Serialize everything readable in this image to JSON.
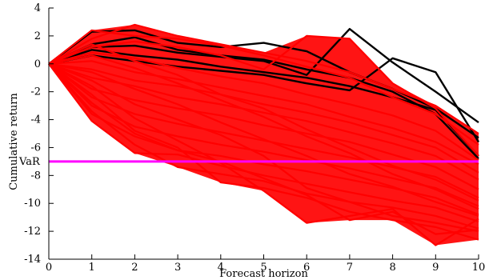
{
  "chart_data": {
    "type": "line",
    "title": "",
    "xlabel": "Forecast horizon",
    "ylabel": "Cumulative return",
    "xlim": [
      0,
      10
    ],
    "ylim": [
      -14,
      4
    ],
    "xticks": [
      0,
      1,
      2,
      3,
      4,
      5,
      6,
      7,
      8,
      9,
      10
    ],
    "yticks": [
      4,
      2,
      0,
      -2,
      -4,
      -6,
      -8,
      -10,
      -12,
      -14
    ],
    "grid": false,
    "colors": {
      "breach": "#000000",
      "simulated": "#ff0000",
      "var": "#ff00ff"
    },
    "var_line": {
      "label": "VaR",
      "value": -7.0
    },
    "series_black": [
      {
        "values": [
          0,
          2.3,
          2.4,
          1.5,
          1.2,
          1.5,
          0.9,
          -0.6,
          -1.8,
          -3.2,
          -5.3
        ]
      },
      {
        "values": [
          0,
          1.2,
          1.3,
          0.8,
          0.5,
          0.2,
          -0.8,
          2.5,
          0.1,
          -2.0,
          -4.2
        ]
      },
      {
        "values": [
          0,
          0.6,
          0.2,
          -0.2,
          -0.5,
          -0.8,
          -1.4,
          -1.9,
          0.4,
          -0.6,
          -5.6
        ]
      },
      {
        "values": [
          0,
          1.0,
          0.6,
          0.3,
          -0.2,
          -0.6,
          -1.0,
          -1.6,
          -2.4,
          -3.3,
          -6.6
        ]
      },
      {
        "values": [
          0,
          1.4,
          1.9,
          1.0,
          0.6,
          0.3,
          -0.4,
          -1.0,
          -2.0,
          -3.6,
          -6.8
        ]
      }
    ],
    "series_red": [
      {
        "values": [
          0,
          2.4,
          2.0,
          1.8,
          1.3,
          0.6,
          -0.2,
          -1.0,
          -2.4,
          -3.6,
          -5.8
        ]
      },
      {
        "values": [
          0,
          1.8,
          2.8,
          2.0,
          1.4,
          0.8,
          0.2,
          -0.6,
          -1.8,
          -3.0,
          -5.0
        ]
      },
      {
        "values": [
          0,
          1.2,
          1.6,
          1.2,
          0.6,
          -0.4,
          2.0,
          1.8,
          -1.4,
          -3.2,
          -6.6
        ]
      },
      {
        "values": [
          0,
          0.8,
          0.4,
          -0.3,
          -0.9,
          -1.4,
          -2.2,
          -2.9,
          -3.7,
          -4.8,
          -6.9
        ]
      },
      {
        "values": [
          0,
          0.2,
          -0.6,
          -1.1,
          -1.7,
          -2.3,
          -2.9,
          -3.8,
          -4.6,
          -5.6,
          -7.2
        ]
      },
      {
        "values": [
          0,
          -0.4,
          -1.2,
          -1.6,
          -2.2,
          -2.9,
          -3.5,
          -4.2,
          -5.1,
          -6.0,
          -7.8
        ]
      },
      {
        "values": [
          0,
          -1.0,
          -1.6,
          -2.4,
          -2.9,
          -3.5,
          -4.1,
          -4.9,
          -5.7,
          -6.6,
          -8.3
        ]
      },
      {
        "values": [
          0,
          -1.8,
          -2.6,
          -3.2,
          -3.7,
          -4.4,
          -5.0,
          -5.6,
          -6.5,
          -7.4,
          -9.0
        ]
      },
      {
        "values": [
          0,
          -2.4,
          -3.6,
          -4.3,
          -4.9,
          -5.5,
          -6.1,
          -6.7,
          -7.4,
          -8.1,
          -9.6
        ]
      },
      {
        "values": [
          0,
          -3.0,
          -4.5,
          -5.2,
          -5.8,
          -6.3,
          -6.9,
          -7.5,
          -8.2,
          -8.9,
          -10.2
        ]
      },
      {
        "values": [
          0,
          -3.6,
          -5.2,
          -6.2,
          -6.6,
          -7.2,
          -7.7,
          -8.3,
          -8.9,
          -9.6,
          -10.8
        ]
      },
      {
        "values": [
          0,
          -4.1,
          -6.4,
          -6.5,
          -7.3,
          -8.0,
          -8.6,
          -9.2,
          -9.8,
          -10.3,
          -11.3
        ]
      },
      {
        "values": [
          0,
          -3.4,
          -5.8,
          -7.4,
          -7.9,
          -8.4,
          -9.3,
          -9.9,
          -10.3,
          -10.9,
          -11.8
        ]
      },
      {
        "values": [
          0,
          -2.2,
          -4.8,
          -6.0,
          -8.5,
          -8.9,
          -9.6,
          -10.6,
          -11.2,
          -11.7,
          -12.6
        ]
      },
      {
        "values": [
          0,
          -1.6,
          -3.9,
          -5.5,
          -7.1,
          -9.1,
          -11.4,
          -10.9,
          -10.4,
          -13.0,
          -11.1
        ]
      },
      {
        "values": [
          0,
          -2.8,
          -5.0,
          -6.2,
          -7.0,
          -8.2,
          -9.4,
          -11.2,
          -10.6,
          -12.2,
          -11.9
        ]
      },
      {
        "values": [
          0,
          -1.2,
          -2.9,
          -4.0,
          -5.1,
          -6.6,
          -8.9,
          -9.9,
          -10.9,
          -11.4,
          -12.0
        ]
      },
      {
        "values": [
          0,
          1.4,
          0.2,
          -0.8,
          -2.2,
          -3.2,
          -4.7,
          -6.0,
          -7.3,
          -8.3,
          -9.8
        ]
      },
      {
        "values": [
          0,
          0.6,
          -0.3,
          -1.4,
          -2.6,
          -3.8,
          -5.2,
          -6.4,
          -7.9,
          -9.0,
          -10.4
        ]
      },
      {
        "values": [
          0,
          -0.6,
          -1.8,
          -2.9,
          -4.2,
          -5.4,
          -6.6,
          -7.9,
          -8.8,
          -9.9,
          -10.9
        ]
      }
    ]
  }
}
